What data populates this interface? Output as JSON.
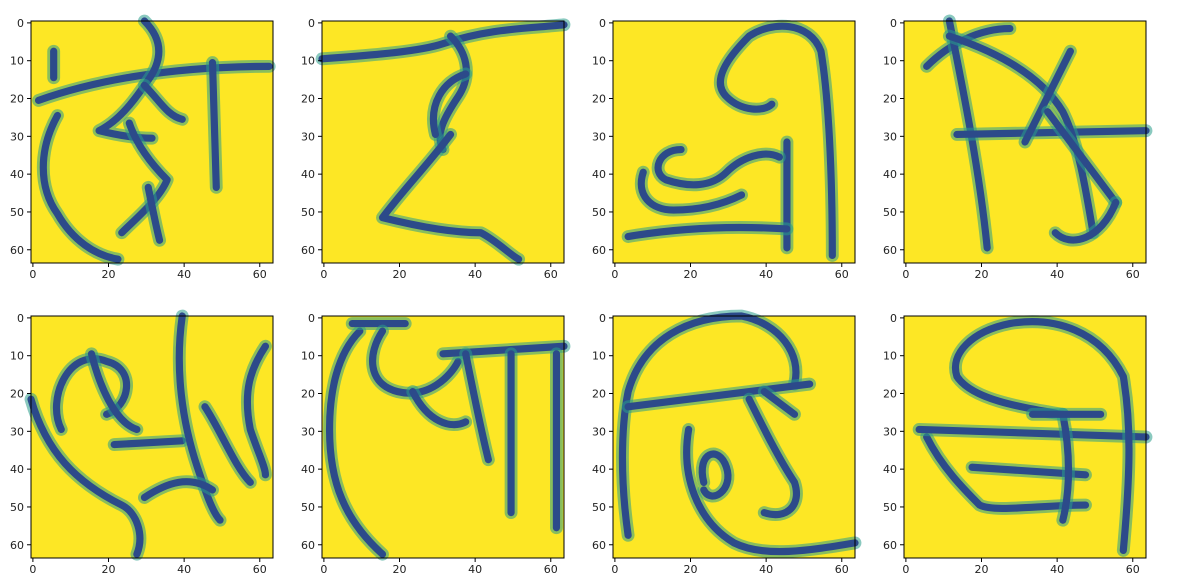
{
  "figure": {
    "description_kind": "grid of image panels",
    "rows": 2,
    "cols": 4
  },
  "colors": {
    "background": "#fde725",
    "stroke": "#2c4a8a",
    "stroke_halo": "#2a9d8a",
    "frame": "#000000",
    "tick_text": "#222222"
  },
  "chart_data": {
    "type": "heatmap",
    "colormap": "viridis",
    "image_size": [
      64,
      64
    ],
    "xlim": [
      0,
      63
    ],
    "ylim": [
      63,
      0
    ],
    "x_ticks": [
      0,
      20,
      40,
      60
    ],
    "y_ticks": [
      0,
      10,
      20,
      30,
      40,
      50,
      60
    ],
    "panels": [
      {
        "index": 1,
        "row": 1,
        "col": 1,
        "glyph": "handwritten-character-1"
      },
      {
        "index": 2,
        "row": 1,
        "col": 2,
        "glyph": "handwritten-character-2"
      },
      {
        "index": 3,
        "row": 1,
        "col": 3,
        "glyph": "handwritten-character-3"
      },
      {
        "index": 4,
        "row": 1,
        "col": 4,
        "glyph": "handwritten-character-4"
      },
      {
        "index": 5,
        "row": 2,
        "col": 1,
        "glyph": "handwritten-character-5"
      },
      {
        "index": 6,
        "row": 2,
        "col": 2,
        "glyph": "handwritten-character-6"
      },
      {
        "index": 7,
        "row": 2,
        "col": 3,
        "glyph": "handwritten-character-7"
      },
      {
        "index": 8,
        "row": 2,
        "col": 4,
        "glyph": "handwritten-character-8"
      }
    ]
  }
}
